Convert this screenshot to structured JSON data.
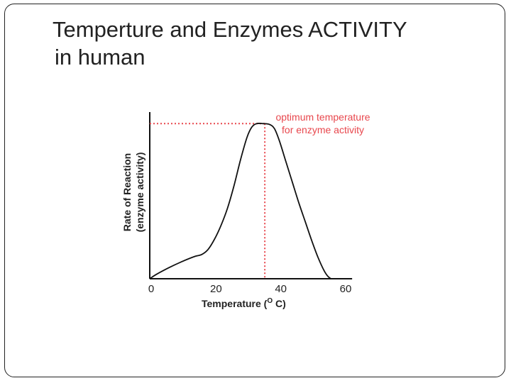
{
  "slide": {
    "title_line1": "Temperture and Enzymes  ACTIVITY",
    "title_line2": "in human"
  },
  "chart_data": {
    "type": "line",
    "xlabel": "Temperature (",
    "xlabel_superscript": "O",
    "xlabel_suffix": " C)",
    "ylabel_line1": "Rate of Reaction",
    "ylabel_line2": "(enzyme activity)",
    "x_ticks": [
      "0",
      "20",
      "40",
      "60"
    ],
    "xlim": [
      0,
      62
    ],
    "ylim": [
      0,
      100
    ],
    "series": [
      {
        "x": [
          0,
          2,
          6,
          10,
          14,
          16,
          18,
          20,
          22,
          24,
          26,
          28,
          30,
          31.5,
          33,
          35,
          37,
          38.5,
          40,
          42,
          44,
          46,
          48,
          50,
          52,
          54,
          55.5,
          57,
          62
        ],
        "y": [
          0,
          2.5,
          6.5,
          10,
          13,
          14,
          17,
          23,
          31,
          41,
          54,
          69,
          82,
          88,
          90,
          90,
          89.5,
          87,
          80,
          68,
          56,
          44,
          33,
          22,
          12,
          4,
          0.5,
          0,
          0
        ]
      }
    ],
    "annotation": {
      "line1": "optimum temperature",
      "line2": "for enzyme activity",
      "x": 35.5,
      "y": 90,
      "color": "#e8474d"
    },
    "line_color": "#111111"
  }
}
